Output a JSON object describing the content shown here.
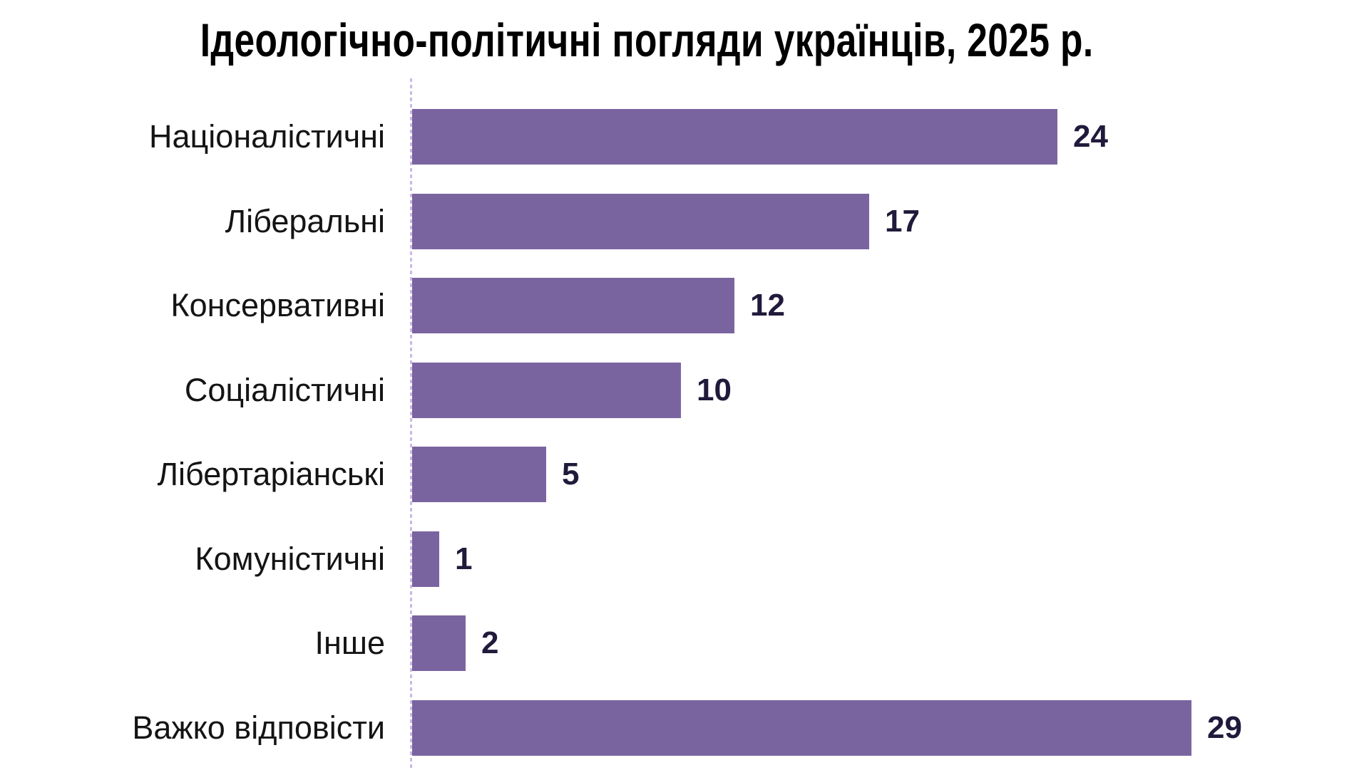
{
  "chart_data": {
    "type": "bar",
    "orientation": "horizontal",
    "title": "Ідеологічно-політичні погляди українців, 2025 р.",
    "categories": [
      "Націоналістичні",
      "Ліберальні",
      "Консервативні",
      "Соціалістичні",
      "Лібертаріанські",
      "Комуністичні",
      "Інше",
      "Важко відповісти"
    ],
    "values": [
      24,
      17,
      12,
      10,
      5,
      1,
      2,
      29
    ],
    "xlabel": "",
    "ylabel": "",
    "xlim": [
      0,
      31
    ],
    "grid": false,
    "legend": false,
    "data_labels": true,
    "bar_color": "#7a64a0",
    "value_label_color": "#211a3b",
    "category_label_color": "#141414",
    "axis_line_color": "#cbb8e6",
    "background_color": "#ffffff"
  }
}
